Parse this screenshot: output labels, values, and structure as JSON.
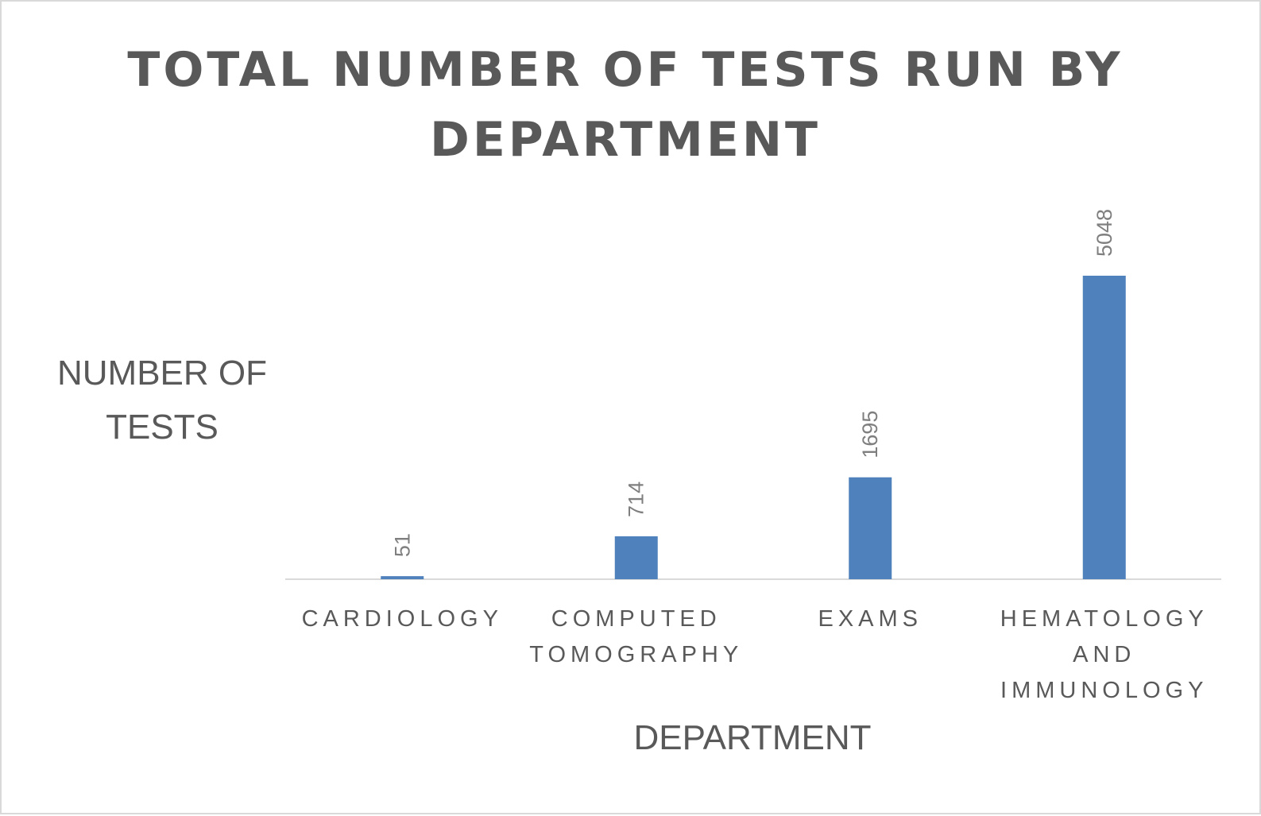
{
  "chart_data": {
    "type": "bar",
    "title": "TOTAL NUMBER OF TESTS RUN BY DEPARTMENT",
    "xlabel": "DEPARTMENT",
    "ylabel": "NUMBER OF TESTS",
    "categories": [
      "CARDIOLOGY",
      "COMPUTED TOMOGRAPHY",
      "EXAMS",
      "HEMATOLOGY AND IMMUNOLOGY"
    ],
    "values": [
      51,
      714,
      1695,
      5048
    ],
    "ylim": [
      0,
      5048
    ],
    "grid": false,
    "legend": "none",
    "data_labels": true,
    "bar_color": "#4f81bd"
  }
}
